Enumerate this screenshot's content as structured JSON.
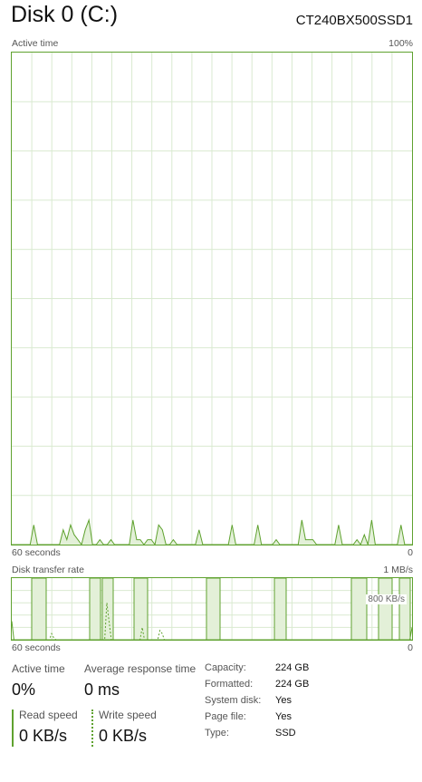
{
  "header": {
    "title": "Disk 0 (C:)",
    "model": "CT240BX500SSD1"
  },
  "active_time_chart": {
    "label": "Active time",
    "max_label": "100%",
    "time_label": "60 seconds",
    "min_label": "0",
    "color": "#5fa22f"
  },
  "transfer_chart": {
    "label": "Disk transfer rate",
    "max_label": "1 MB/s",
    "mid_label": "800 KB/s",
    "time_label": "60 seconds",
    "min_label": "0",
    "color": "#5fa22f"
  },
  "stats": {
    "active_time": {
      "label": "Active time",
      "value": "0%"
    },
    "response_time": {
      "label": "Average response time",
      "value": "0 ms"
    },
    "read_speed": {
      "label": "Read speed",
      "value": "0 KB/s"
    },
    "write_speed": {
      "label": "Write speed",
      "value": "0 KB/s"
    }
  },
  "properties": [
    {
      "key": "Capacity:",
      "value": "224 GB"
    },
    {
      "key": "Formatted:",
      "value": "224 GB"
    },
    {
      "key": "System disk:",
      "value": "Yes"
    },
    {
      "key": "Page file:",
      "value": "Yes"
    },
    {
      "key": "Type:",
      "value": "SSD"
    }
  ],
  "chart_data": [
    {
      "type": "area",
      "title": "Active time",
      "ylabel": "",
      "ylim": [
        0,
        100
      ],
      "x_range": [
        60,
        0
      ],
      "grid": true,
      "series": [
        {
          "values": [
            0,
            0,
            0,
            0,
            0,
            0,
            4,
            0,
            0,
            0,
            0,
            0,
            0,
            0,
            3,
            1,
            4,
            2,
            1,
            0,
            3,
            5,
            0,
            0,
            1,
            0,
            0,
            1,
            0,
            0,
            0,
            0,
            0,
            5,
            1,
            1,
            0,
            1,
            1,
            0,
            4,
            3,
            0,
            0,
            1,
            0,
            0,
            0,
            0,
            0,
            0,
            3,
            0,
            0,
            0,
            0,
            0,
            0,
            0,
            0,
            4,
            0,
            0,
            0,
            0,
            0,
            0,
            4,
            0,
            0,
            0,
            0,
            1,
            0,
            0,
            0,
            0,
            0,
            0,
            5,
            1,
            1,
            1,
            0,
            0,
            0,
            0,
            0,
            0,
            4,
            0,
            0,
            0,
            0,
            1,
            0,
            2,
            0,
            5,
            0,
            0,
            0,
            0,
            0,
            0,
            0,
            4,
            0,
            0,
            0
          ]
        }
      ]
    },
    {
      "type": "line",
      "title": "Disk transfer rate",
      "ylabel": "",
      "ylim": [
        0,
        1000
      ],
      "y_unit": "KB/s",
      "x_range": [
        60,
        0
      ],
      "grid": true,
      "series": [
        {
          "style": "solid",
          "values": [
            300,
            0,
            0,
            0,
            0,
            0,
            0,
            0,
            0,
            0,
            0,
            0,
            0,
            0,
            0,
            0,
            0,
            0,
            0,
            0,
            0,
            0,
            0,
            0,
            0,
            0,
            0,
            0,
            0,
            0,
            0,
            0,
            0,
            0,
            0,
            0,
            0,
            0,
            0,
            0,
            0,
            0,
            0,
            0,
            0,
            0,
            0,
            0,
            0,
            0,
            0,
            0,
            0,
            0,
            0,
            0,
            0,
            0,
            0,
            0,
            0,
            0,
            0,
            0,
            0,
            0,
            0,
            0,
            0,
            0,
            0,
            0,
            0,
            0,
            0,
            0,
            0,
            0,
            0,
            0,
            0,
            0,
            0,
            0,
            0,
            0,
            0,
            0,
            0,
            0,
            0,
            0,
            0,
            0,
            0,
            0,
            0,
            0,
            0,
            0,
            0,
            0,
            0,
            0,
            0,
            0,
            0,
            0,
            0,
            0,
            0,
            0,
            0,
            0,
            0,
            0,
            0,
            0,
            0,
            0,
            0,
            0,
            0,
            0,
            0,
            0,
            0,
            0,
            0,
            0,
            0,
            0,
            0,
            0,
            0,
            0,
            0,
            0,
            0,
            0,
            0,
            0,
            0,
            0,
            0,
            0,
            0,
            0,
            0,
            0,
            0,
            0,
            0,
            0,
            0,
            0,
            0,
            0,
            0,
            0,
            0,
            0,
            0,
            0,
            0,
            0,
            0,
            0,
            0,
            0,
            0,
            0,
            0,
            0,
            0,
            0,
            0,
            0,
            0,
            0,
            0,
            200
          ]
        },
        {
          "style": "dashed",
          "values": [
            0,
            0,
            0,
            0,
            0,
            0,
            0,
            0,
            0,
            0,
            0,
            0,
            0,
            0,
            0,
            0,
            0,
            0,
            100,
            30,
            0,
            0,
            0,
            0,
            0,
            0,
            0,
            0,
            0,
            0,
            0,
            0,
            0,
            0,
            0,
            0,
            0,
            0,
            0,
            0,
            0,
            0,
            0,
            600,
            300,
            0,
            0,
            0,
            0,
            0,
            0,
            0,
            0,
            0,
            0,
            0,
            0,
            0,
            0,
            200,
            0,
            0,
            0,
            0,
            0,
            0,
            0,
            150,
            100,
            0,
            0,
            0,
            0,
            0,
            0,
            0,
            0,
            0,
            0,
            0,
            0,
            0,
            0,
            0,
            0,
            0,
            0,
            0,
            0,
            0,
            0,
            0,
            0,
            0,
            0,
            0,
            0,
            0,
            0,
            0,
            0,
            0,
            0,
            0,
            0,
            0,
            0,
            0,
            0,
            0,
            0,
            0,
            0,
            0,
            0,
            0,
            0,
            0,
            0,
            0,
            0,
            0,
            0,
            0,
            0,
            0,
            0,
            0,
            0,
            0,
            0,
            0,
            0,
            0,
            0,
            0,
            0,
            0,
            0,
            0,
            0,
            0,
            0,
            0,
            0,
            0,
            0,
            0,
            0,
            0,
            0,
            0,
            0,
            0,
            0,
            0,
            0,
            0,
            0,
            0,
            0,
            0,
            0,
            0,
            0,
            0,
            0,
            0,
            0,
            0,
            0,
            0,
            0,
            0,
            0,
            0,
            0,
            0,
            0,
            0,
            0,
            0
          ]
        }
      ]
    }
  ]
}
